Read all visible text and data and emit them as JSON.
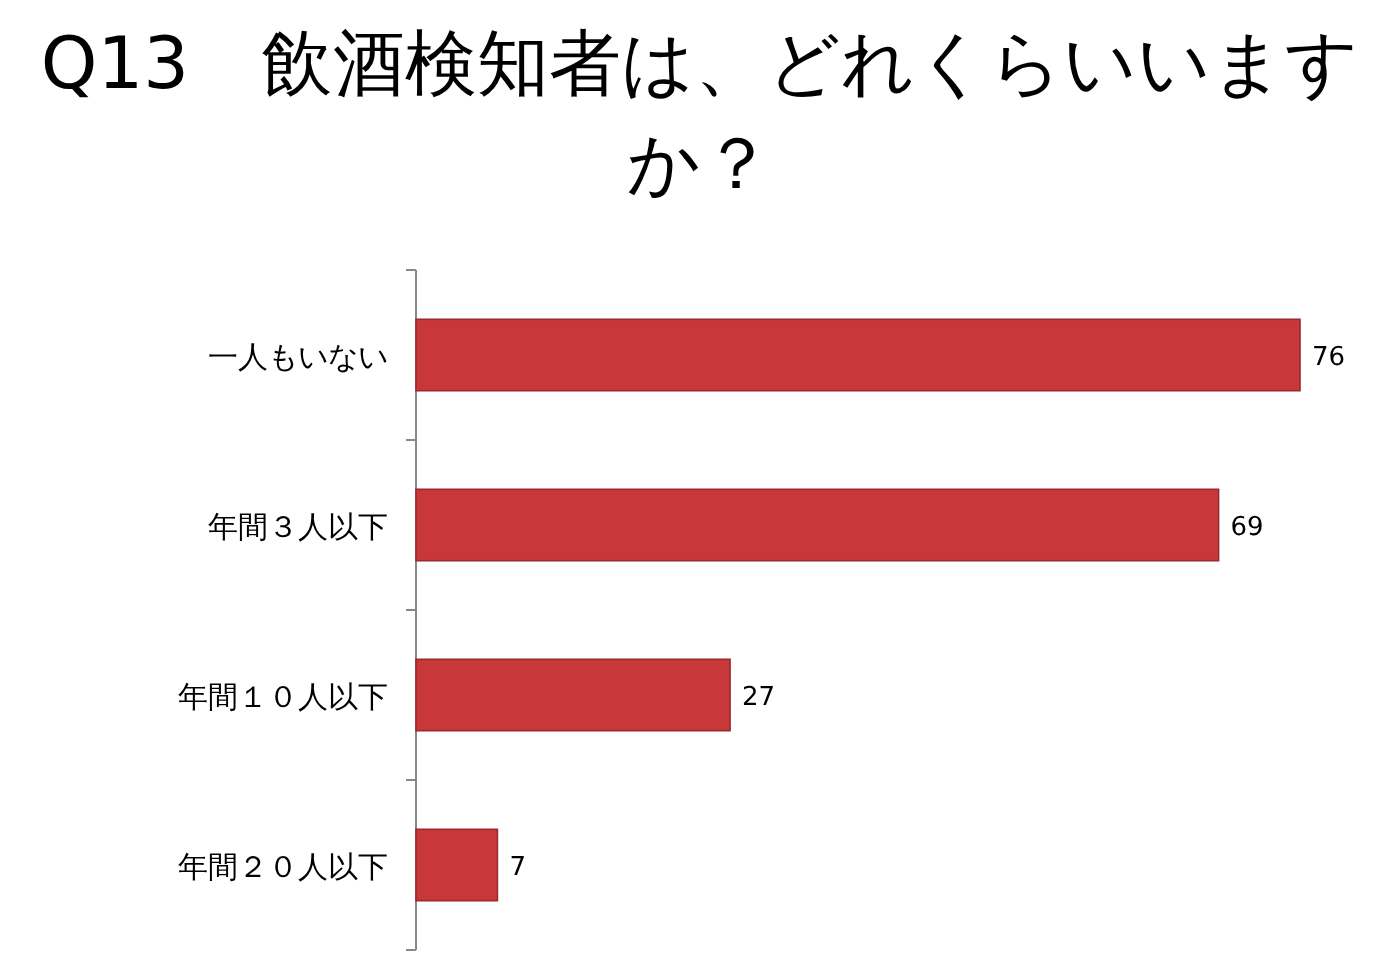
{
  "chart_data": {
    "type": "bar",
    "orientation": "horizontal",
    "title": "Q13　飲酒検知者は、どれくらいいますか？",
    "categories": [
      "一人もいない",
      "年間３人以下",
      "年間１０人以下",
      "年間２０人以下"
    ],
    "values": [
      76,
      69,
      27,
      7
    ],
    "color": "#c8373a",
    "data_labels": true
  }
}
